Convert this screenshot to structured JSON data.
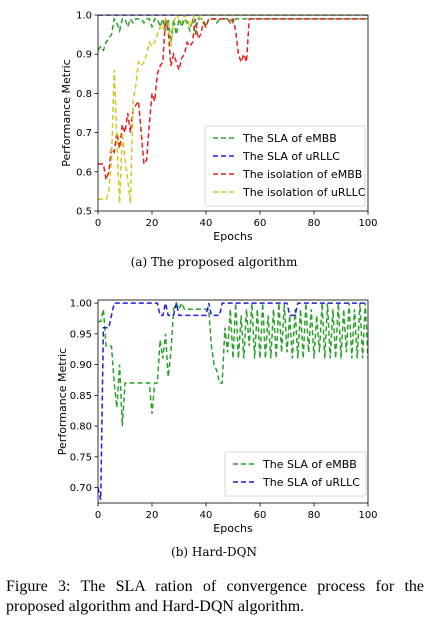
{
  "chart_data": [
    {
      "type": "line",
      "ylabel": "Performance Metric",
      "xlabel": "Epochs",
      "xlim": [
        0,
        100
      ],
      "ylim": [
        0.5,
        1.0
      ],
      "xticks": [
        "0",
        "20",
        "40",
        "60",
        "80",
        "100"
      ],
      "yticks": [
        "0.5",
        "0.6",
        "0.7",
        "0.8",
        "0.9",
        "1.0"
      ],
      "legend_position": "lower-right",
      "series": [
        {
          "name": "The SLA of eMBB",
          "color": "#2ca02c",
          "x": [
            0,
            1,
            2,
            3,
            4,
            5,
            6,
            7,
            8,
            9,
            10,
            11,
            12,
            13,
            14,
            15,
            16,
            17,
            18,
            19,
            20,
            21,
            22,
            23,
            24,
            25,
            26,
            27,
            28,
            29,
            30,
            31,
            32,
            33,
            34,
            35,
            36,
            37,
            38,
            39,
            40,
            41,
            42,
            43,
            44,
            45,
            46,
            47,
            48,
            49,
            50,
            51,
            52,
            53,
            54,
            55,
            56,
            57,
            58,
            59,
            60,
            65,
            70,
            80,
            90,
            100
          ],
          "y": [
            0.91,
            0.92,
            0.91,
            0.93,
            0.94,
            0.95,
            0.99,
            0.98,
            0.96,
            0.99,
            0.99,
            0.97,
            0.99,
            0.98,
            0.99,
            0.99,
            0.99,
            0.98,
            0.99,
            0.99,
            0.97,
            0.99,
            0.99,
            0.97,
            0.99,
            0.96,
            0.99,
            0.93,
            0.99,
            0.95,
            0.99,
            0.97,
            0.99,
            0.98,
            0.96,
            0.99,
            0.95,
            0.99,
            0.99,
            0.99,
            0.97,
            0.99,
            0.99,
            0.99,
            0.98,
            0.99,
            0.99,
            0.99,
            0.99,
            0.99,
            0.98,
            0.99,
            0.99,
            0.99,
            0.99,
            0.99,
            0.99,
            0.99,
            0.99,
            0.99,
            0.99,
            0.99,
            0.99,
            0.99,
            0.99,
            0.99
          ]
        },
        {
          "name": "The SLA of uRLLC",
          "color": "#1f1fe6",
          "x": [
            0,
            20,
            40,
            60,
            80,
            100
          ],
          "y": [
            1.0,
            1.0,
            1.0,
            1.0,
            1.0,
            1.0
          ]
        },
        {
          "name": "The isolation of eMBB",
          "color": "#e61e1e",
          "x": [
            0,
            1,
            2,
            3,
            4,
            5,
            6,
            7,
            8,
            9,
            10,
            11,
            12,
            13,
            14,
            15,
            16,
            17,
            18,
            19,
            20,
            21,
            22,
            23,
            24,
            25,
            26,
            27,
            28,
            29,
            30,
            31,
            32,
            33,
            34,
            35,
            36,
            37,
            38,
            39,
            40,
            41,
            42,
            43,
            44,
            45,
            46,
            47,
            48,
            49,
            50,
            51,
            52,
            53,
            54,
            55,
            56,
            57,
            58,
            59,
            60,
            70,
            80,
            90,
            100
          ],
          "y": [
            0.62,
            0.62,
            0.62,
            0.58,
            0.6,
            0.66,
            0.65,
            0.7,
            0.66,
            0.72,
            0.7,
            0.75,
            0.7,
            0.76,
            0.77,
            0.78,
            0.7,
            0.62,
            0.63,
            0.72,
            0.8,
            0.78,
            0.85,
            0.87,
            0.88,
            0.99,
            0.96,
            0.87,
            0.9,
            0.88,
            0.86,
            0.89,
            0.9,
            0.93,
            0.92,
            0.93,
            0.99,
            0.94,
            0.95,
            0.98,
            0.97,
            0.99,
            0.99,
            0.99,
            0.99,
            0.99,
            0.99,
            0.99,
            0.99,
            0.98,
            0.99,
            0.96,
            0.9,
            0.88,
            0.9,
            0.88,
            0.99,
            0.99,
            0.99,
            0.99,
            0.99,
            0.99,
            0.99,
            0.99,
            0.99
          ]
        },
        {
          "name": "The isolation of uRLLC",
          "color": "#cccc22",
          "x": [
            0,
            1,
            2,
            3,
            4,
            5,
            6,
            7,
            8,
            9,
            10,
            11,
            12,
            13,
            14,
            15,
            16,
            17,
            18,
            19,
            20,
            21,
            22,
            23,
            24,
            25,
            26,
            27,
            28,
            29,
            30,
            31,
            32,
            33,
            34,
            35,
            36,
            37,
            38,
            39,
            40,
            41,
            42,
            43,
            44,
            45,
            46,
            47,
            48,
            49,
            50,
            60,
            70,
            80,
            90,
            100
          ],
          "y": [
            0.53,
            0.53,
            0.53,
            0.53,
            0.55,
            0.63,
            0.86,
            0.68,
            0.52,
            0.7,
            0.63,
            0.58,
            0.52,
            0.78,
            0.82,
            0.88,
            0.87,
            0.88,
            0.9,
            0.93,
            0.92,
            0.93,
            0.95,
            0.97,
            0.96,
            0.99,
            0.98,
            0.92,
            0.98,
            1.0,
            0.99,
            0.98,
            1.0,
            0.99,
            0.97,
            0.99,
            1.0,
            1.0,
            0.99,
            1.0,
            1.0,
            1.0,
            1.0,
            1.0,
            1.0,
            1.0,
            1.0,
            1.0,
            1.0,
            1.0,
            1.0,
            1.0,
            1.0,
            1.0,
            1.0,
            1.0
          ]
        }
      ]
    },
    {
      "type": "line",
      "ylabel": "Performance Metric",
      "xlabel": "Epochs",
      "xlim": [
        0,
        100
      ],
      "ylim": [
        0.675,
        1.005
      ],
      "xticks": [
        "0",
        "20",
        "40",
        "60",
        "80",
        "100"
      ],
      "yticks": [
        "0.70",
        "0.75",
        "0.80",
        "0.85",
        "0.90",
        "0.95",
        "1.00"
      ],
      "legend_position": "lower-right",
      "series": [
        {
          "name": "The SLA of eMBB",
          "color": "#2ca02c",
          "x": [
            0,
            1,
            2,
            3,
            4,
            5,
            6,
            7,
            8,
            9,
            10,
            11,
            12,
            13,
            14,
            15,
            16,
            17,
            18,
            19,
            20,
            21,
            22,
            23,
            24,
            25,
            26,
            27,
            28,
            29,
            30,
            31,
            32,
            33,
            34,
            35,
            36,
            37,
            38,
            39,
            40,
            41,
            42,
            43,
            44,
            45,
            46,
            47,
            48,
            49,
            50,
            51,
            52,
            53,
            54,
            55,
            56,
            57,
            58,
            59,
            60,
            61,
            62,
            63,
            64,
            65,
            66,
            67,
            68,
            69,
            70,
            71,
            72,
            73,
            74,
            75,
            76,
            77,
            78,
            79,
            80,
            81,
            82,
            83,
            84,
            85,
            86,
            87,
            88,
            89,
            90,
            91,
            92,
            93,
            94,
            95,
            96,
            97,
            98,
            99,
            100
          ],
          "y": [
            0.97,
            0.97,
            0.99,
            0.93,
            0.93,
            0.93,
            0.87,
            0.83,
            0.9,
            0.8,
            0.87,
            0.87,
            0.87,
            0.87,
            0.87,
            0.87,
            0.87,
            0.87,
            0.87,
            0.87,
            0.82,
            0.87,
            0.87,
            0.94,
            0.91,
            0.95,
            0.88,
            0.92,
            0.99,
            1.0,
            0.99,
            1.0,
            0.99,
            0.99,
            0.99,
            0.99,
            0.99,
            0.99,
            0.99,
            0.99,
            0.99,
            0.99,
            0.93,
            0.9,
            0.89,
            0.87,
            0.87,
            0.96,
            0.92,
            0.99,
            0.91,
            1.0,
            0.91,
            0.98,
            0.91,
            0.99,
            0.93,
            1.0,
            0.91,
            0.99,
            0.91,
            1.0,
            0.91,
            0.98,
            0.91,
            0.99,
            0.91,
            1.0,
            0.92,
            1.0,
            0.92,
            0.98,
            0.91,
            0.99,
            0.91,
            0.99,
            0.91,
            1.0,
            0.92,
            0.99,
            0.91,
            0.98,
            0.92,
            1.0,
            0.91,
            1.0,
            0.91,
            0.99,
            0.91,
            1.0,
            0.91,
            0.99,
            0.92,
            1.0,
            0.91,
            0.99,
            0.91,
            1.0,
            0.91,
            1.0,
            0.91
          ]
        },
        {
          "name": "The SLA of uRLLC",
          "color": "#1f1fe6",
          "x": [
            0,
            1,
            2,
            3,
            4,
            5,
            6,
            7,
            8,
            20,
            22,
            23,
            24,
            25,
            26,
            28,
            29,
            30,
            31,
            32,
            39,
            40,
            41,
            42,
            43,
            44,
            45,
            46,
            50,
            60,
            70,
            71,
            72,
            73,
            74,
            75,
            80,
            90,
            100
          ],
          "y": [
            0.7,
            0.68,
            0.96,
            0.96,
            0.96,
            0.98,
            1.0,
            1.0,
            1.0,
            1.0,
            1.0,
            0.98,
            0.98,
            1.0,
            0.98,
            0.98,
            1.0,
            0.98,
            0.98,
            0.98,
            0.98,
            0.98,
            1.0,
            0.98,
            0.98,
            0.98,
            0.98,
            1.0,
            1.0,
            1.0,
            1.0,
            0.98,
            0.98,
            0.98,
            1.0,
            1.0,
            1.0,
            1.0,
            1.0
          ]
        }
      ]
    }
  ],
  "captions": {
    "a": "(a) The proposed algorithm",
    "b": "(b) Hard-DQN",
    "figure": "Figure 3: The SLA ration of convergence process for the proposed algorithm and Hard-DQN algorithm."
  }
}
